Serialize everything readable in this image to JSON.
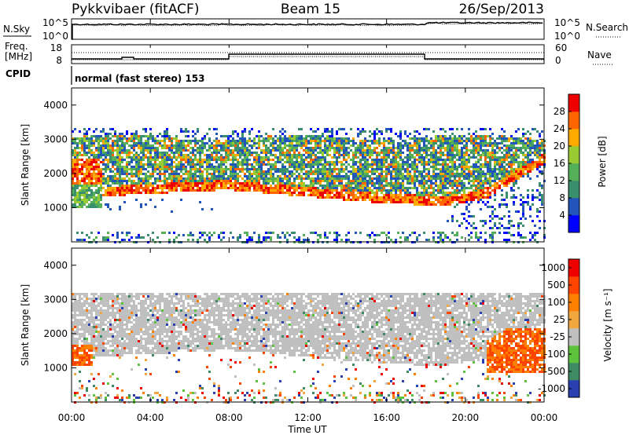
{
  "header": {
    "station": "Pykkvibaer (fitACF)",
    "beam": "Beam 15",
    "date": "26/Sep/2013"
  },
  "top_panels": {
    "nsky_label": "N.Sky",
    "nsky_ticks": [
      "10^5",
      "10^0"
    ],
    "nsearch_label": "N.Search",
    "nsearch_ticks": [
      "10^5",
      "10^0"
    ],
    "freq_label": "Freq.",
    "freq_unit": "[MHz]",
    "freq_ticks": [
      "18",
      "8"
    ],
    "nave_label": "Nave",
    "nave_ticks": [
      "60",
      "0"
    ],
    "cpid_label": "CPID",
    "cpid_text": "normal (fast stereo) 153"
  },
  "colors": {
    "power": [
      "#0000ff",
      "#2255bb",
      "#3a8f6f",
      "#55b05a",
      "#99cc33",
      "#ffaa00",
      "#ff6600",
      "#ee0000"
    ],
    "velocity": [
      "#2a3fb0",
      "#3e8a63",
      "#5ec33c",
      "#c0c0c0",
      "#f2a640",
      "#ff7f00",
      "#ff4400",
      "#ee0000"
    ]
  },
  "chart_data": [
    {
      "type": "heatmap",
      "name": "power",
      "ylabel": "Slant Range [km]",
      "ylim": [
        0,
        4500
      ],
      "yticks": [
        "1000",
        "2000",
        "3000",
        "4000"
      ],
      "xlim": [
        0,
        24
      ],
      "colorbar_label": "Power [dB]",
      "colorbar_ticks": [
        "4",
        "8",
        "12",
        "16",
        "20",
        "24",
        "28"
      ],
      "colorbar_range": [
        0,
        32
      ]
    },
    {
      "type": "heatmap",
      "name": "velocity",
      "ylabel": "Slant Range [km]",
      "ylim": [
        0,
        4500
      ],
      "yticks": [
        "1000",
        "2000",
        "3000",
        "4000"
      ],
      "xlabel": "Time UT",
      "xticks": [
        "00:00",
        "04:00",
        "08:00",
        "12:00",
        "16:00",
        "20:00",
        "00:00"
      ],
      "xlim": [
        0,
        24
      ],
      "colorbar_label": "Velocity [m s⁻¹]",
      "colorbar_ticks": [
        "1000",
        "500",
        "100",
        "25",
        "-25",
        "-100",
        "-500",
        "-1000"
      ]
    }
  ]
}
